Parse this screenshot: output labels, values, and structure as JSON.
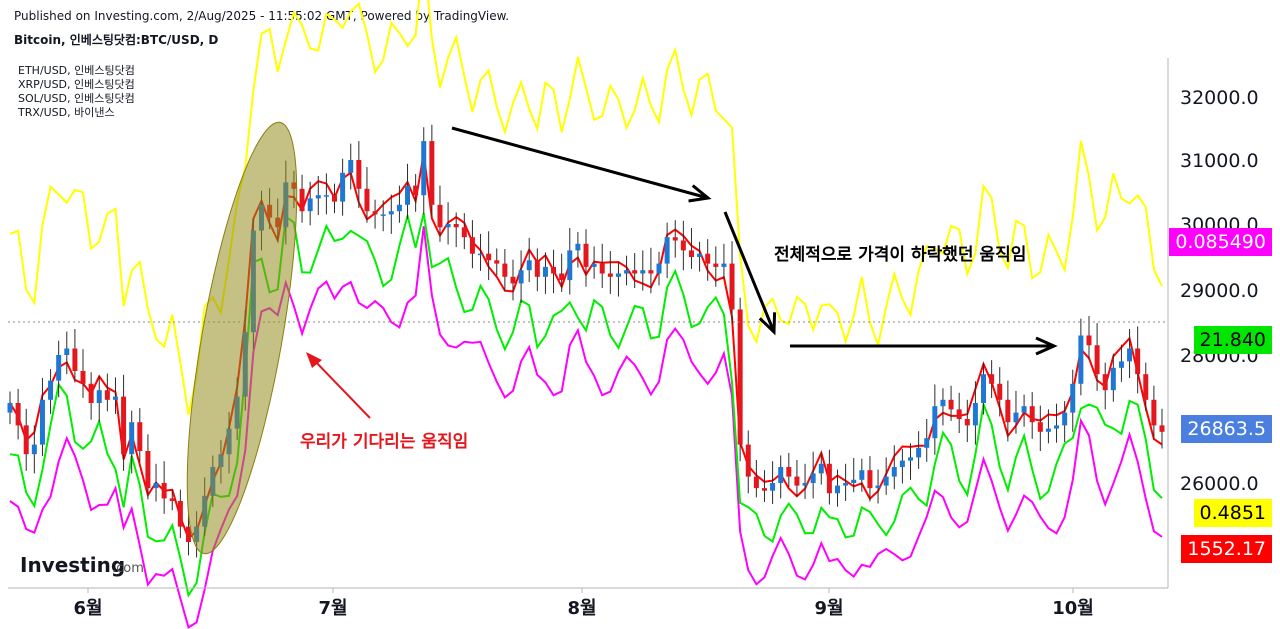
{
  "header": {
    "published": "Published on Investing.com, 2/Aug/2025 - 11:55:02 GMT, Powered by TradingView.",
    "symbol": "Bitcoin, 인베스팅닷컴:BTC/USD, D"
  },
  "legend": [
    {
      "label": "ETH/USD, 인베스팅닷컴"
    },
    {
      "label": "XRP/USD, 인베스팅닷컴"
    },
    {
      "label": "SOL/USD, 인베스팅닷컴"
    },
    {
      "label": "TRX/USD, 바이낸스"
    }
  ],
  "brand": {
    "name": "Investing",
    "suffix": ".com"
  },
  "annotations": {
    "waiting": "우리가 기다리는 움직임",
    "decline": "전체적으로 가격이 하락했던 움직임"
  },
  "price_tags": [
    {
      "label": "0.085490",
      "bg": "#ff00ff",
      "fg": "#ffffff"
    },
    {
      "label": "21.840",
      "bg": "#00e600",
      "fg": "#000000"
    },
    {
      "label": "26863.5",
      "bg": "#4a7fe0",
      "fg": "#ffffff"
    },
    {
      "label": "0.4851",
      "bg": "#ffff00",
      "fg": "#000000"
    },
    {
      "label": "1552.17",
      "bg": "#ff0000",
      "fg": "#ffffff"
    }
  ],
  "chart_data": {
    "type": "candlestick",
    "y_axis_ticks": [
      26000,
      28000,
      29000,
      30000,
      31000,
      32000
    ],
    "y_axis_labels": [
      "26000.0",
      "28000.0",
      "29000.0",
      "30000.0",
      "31000.0",
      "32000.0"
    ],
    "x_axis_labels": [
      "6월",
      "7월",
      "8월",
      "9월",
      "10월"
    ],
    "ylim": [
      24500,
      33000
    ],
    "btc_close_approx": [
      27250,
      26900,
      26450,
      26600,
      27300,
      27600,
      28000,
      28100,
      27750,
      27550,
      27250,
      27450,
      27300,
      27350,
      26450,
      26950,
      26500,
      25900,
      26000,
      25700,
      25650,
      25150,
      24850,
      25150,
      25750,
      26250,
      26450,
      26850,
      27350,
      28350,
      29900,
      30300,
      30100,
      29950,
      30650,
      30550,
      30200,
      30400,
      30450,
      30450,
      30350,
      30800,
      31000,
      30550,
      30200,
      30150,
      30150,
      30200,
      30300,
      30600,
      30450,
      31300,
      30300,
      29950,
      30000,
      29950,
      29800,
      29550,
      29550,
      29450,
      29400,
      29200,
      29100,
      29300,
      29450,
      29200,
      29350,
      29250,
      29150,
      29600,
      29700,
      29350,
      29400,
      29250,
      29200,
      29250,
      29300,
      29250,
      29300,
      29250,
      29400,
      29800,
      29750,
      29600,
      29500,
      29550,
      29400,
      29350,
      29400,
      28700,
      26600,
      26100,
      25900,
      25850,
      26000,
      26250,
      26100,
      25950,
      26000,
      26150,
      26300,
      25800,
      25950,
      26000,
      26050,
      26200,
      25900,
      25950,
      26100,
      26250,
      26350,
      26400,
      26550,
      26700,
      27200,
      27300,
      27150,
      27000,
      26900,
      27250,
      27700,
      27550,
      27300,
      26950,
      27100,
      27200,
      26950,
      26800,
      26850,
      26900,
      27100,
      27550,
      28300,
      28150,
      27700,
      27450,
      27800,
      27900,
      28100,
      27700,
      27300,
      26900,
      26800
    ],
    "series": [
      {
        "name": "ETH/USD",
        "color": "#ff0000"
      },
      {
        "name": "XRP/USD",
        "color": "#ff00ff"
      },
      {
        "name": "SOL/USD",
        "color": "#00ee00"
      },
      {
        "name": "TRX/USD",
        "color": "#ffff00"
      }
    ],
    "grid": false
  }
}
